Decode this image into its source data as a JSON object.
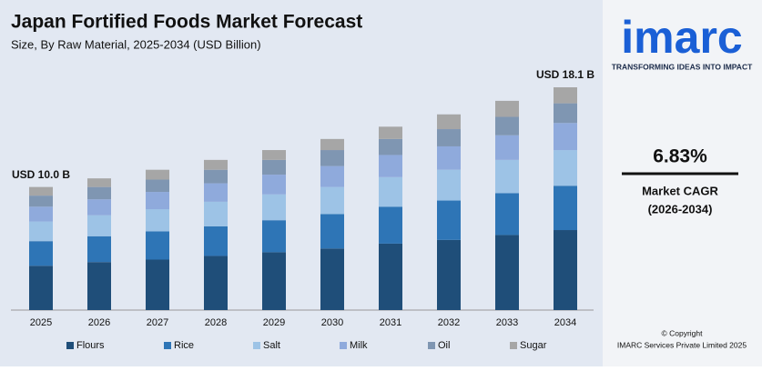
{
  "chart_data": {
    "type": "stacked-bar",
    "title": "Japan Fortified Foods Market Forecast",
    "subtitle": "Size, By Raw Material, 2025-2034 (USD Billion)",
    "categories": [
      "2025",
      "2026",
      "2027",
      "2028",
      "2029",
      "2030",
      "2031",
      "2032",
      "2033",
      "2034"
    ],
    "series": [
      {
        "name": "Flours",
        "color": "#1f4e79",
        "values": [
          3.6,
          3.9,
          4.1,
          4.4,
          4.7,
          5.0,
          5.4,
          5.7,
          6.1,
          6.5
        ]
      },
      {
        "name": "Rice",
        "color": "#2e75b6",
        "values": [
          2.0,
          2.1,
          2.3,
          2.4,
          2.6,
          2.8,
          3.0,
          3.2,
          3.4,
          3.6
        ]
      },
      {
        "name": "Salt",
        "color": "#9dc3e6",
        "values": [
          1.6,
          1.7,
          1.8,
          2.0,
          2.1,
          2.2,
          2.4,
          2.5,
          2.7,
          2.9
        ]
      },
      {
        "name": "Milk",
        "color": "#8faadc",
        "values": [
          1.2,
          1.3,
          1.4,
          1.5,
          1.6,
          1.7,
          1.8,
          1.9,
          2.0,
          2.2
        ]
      },
      {
        "name": "Oil",
        "color": "#7f96b2",
        "values": [
          0.9,
          1.0,
          1.0,
          1.1,
          1.2,
          1.3,
          1.3,
          1.4,
          1.5,
          1.6
        ]
      },
      {
        "name": "Sugar",
        "color": "#a6a6a6",
        "values": [
          0.7,
          0.7,
          0.8,
          0.8,
          0.8,
          0.9,
          1.0,
          1.2,
          1.3,
          1.3
        ]
      }
    ],
    "annotations": [
      {
        "text": "USD 10.0 B",
        "category": 0
      },
      {
        "text": "USD 18.1 B",
        "category": 9
      }
    ],
    "legend": "bottom"
  },
  "sidebar": {
    "logo": "imarc",
    "tagline": "TRANSFORMING IDEAS INTO IMPACT",
    "cagr_value": "6.83%",
    "cagr_label": "Market CAGR",
    "cagr_period": "(2026-2034)",
    "copyright": "© Copyright",
    "company": "IMARC Services Private Limited 2025"
  }
}
